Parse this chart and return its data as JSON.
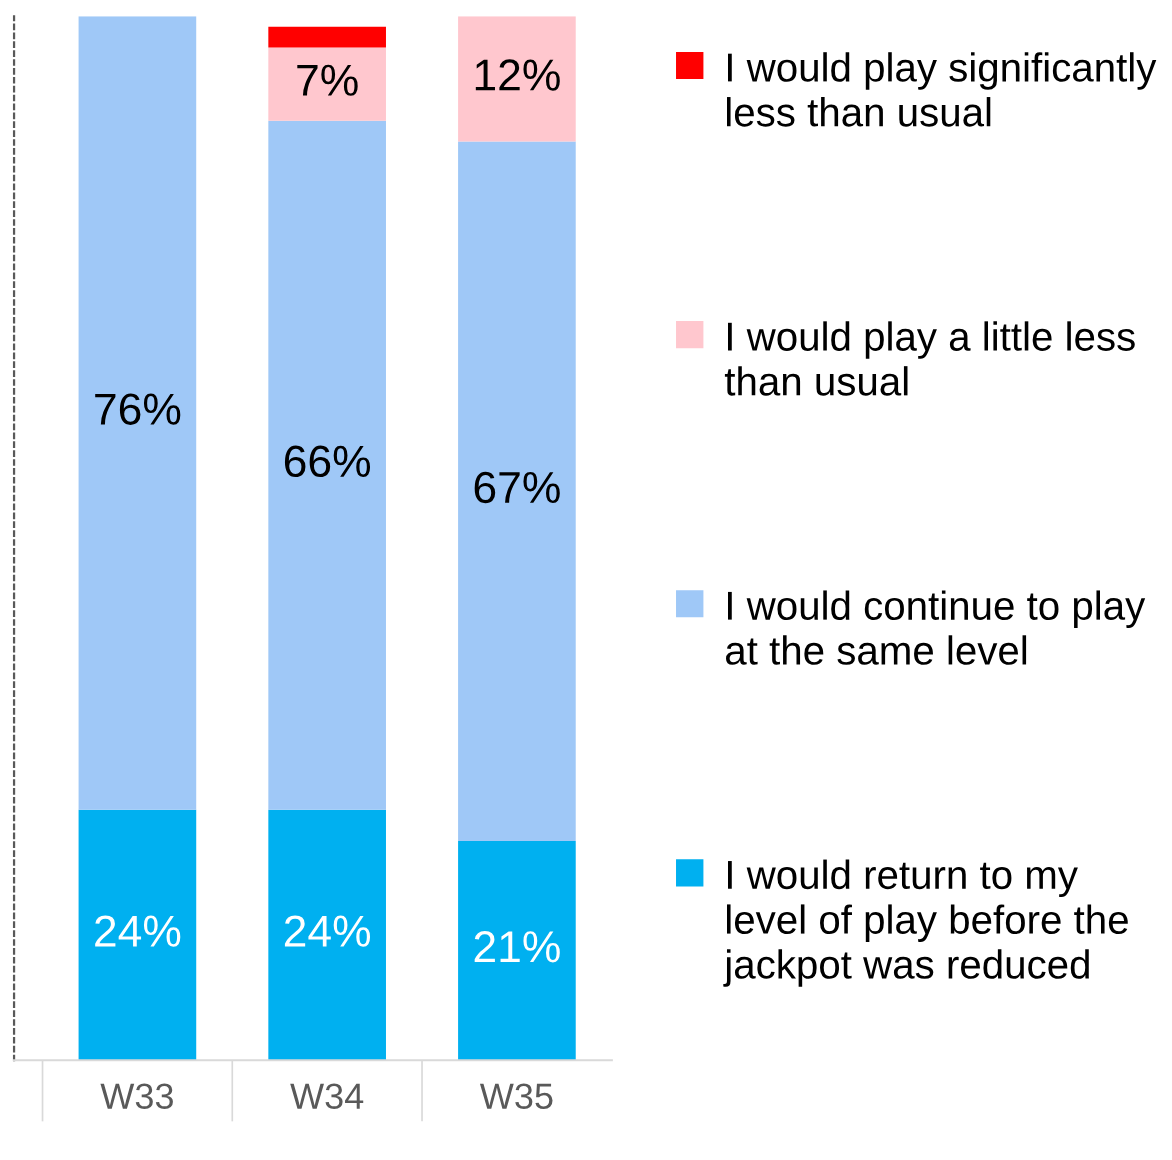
{
  "chart_data": {
    "type": "bar",
    "stacked": true,
    "categories": [
      "W33",
      "W34",
      "W35"
    ],
    "legend": "right",
    "series": [
      {
        "name": "I would return to my level of play before the jackpot was reduced",
        "color": "#00b0f0",
        "values": [
          24,
          24,
          21
        ],
        "value_labels": [
          "24%",
          "24%",
          "21%"
        ]
      },
      {
        "name": "I would continue to play at the same level",
        "color": "#9fc8f7",
        "values": [
          76,
          66,
          67
        ],
        "value_labels": [
          "76%",
          "66%",
          "67%"
        ]
      },
      {
        "name": "I would play a little less than usual",
        "color": "#ffc7ce",
        "values": [
          0,
          7,
          12
        ],
        "value_labels": [
          null,
          "7%",
          "12%"
        ]
      },
      {
        "name": "I would play significantly less than usual",
        "color": "#ff0000",
        "values": [
          0,
          2,
          0
        ],
        "value_labels": [
          null,
          null,
          null
        ]
      }
    ]
  }
}
